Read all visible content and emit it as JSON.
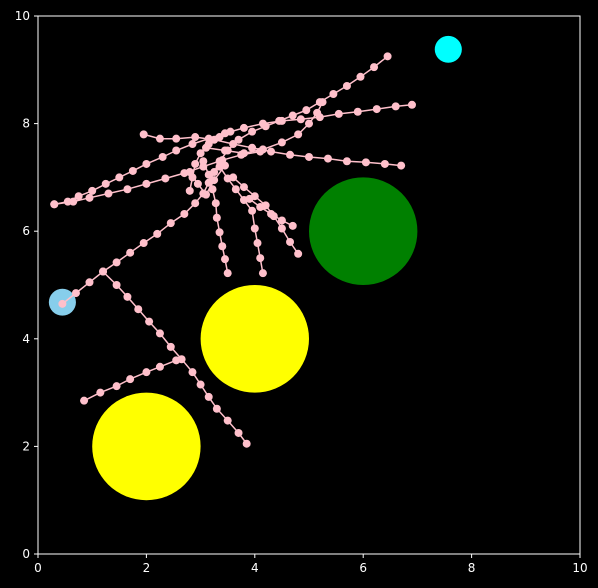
{
  "chart_data": {
    "type": "scatter",
    "title": "",
    "xlabel": "",
    "ylabel": "",
    "xlim": [
      0,
      10
    ],
    "ylim": [
      0,
      10
    ],
    "xticks": [
      "0",
      "2",
      "4",
      "6",
      "8",
      "10"
    ],
    "yticks": [
      "0",
      "2",
      "4",
      "6",
      "8",
      "10"
    ],
    "grid": false,
    "colors": {
      "background": "#000000",
      "axes": "#ffffff",
      "tree": "#ffc0cb",
      "start": "#87ceeb",
      "goal": "#00ffff",
      "obstacle_yellow": "#ffff00",
      "obstacle_green": "#008000"
    },
    "obstacles": [
      {
        "cx": 2,
        "cy": 2,
        "r": 1.0,
        "color": "#ffff00"
      },
      {
        "cx": 4,
        "cy": 4,
        "r": 1.0,
        "color": "#ffff00"
      },
      {
        "cx": 6,
        "cy": 6,
        "r": 1.0,
        "color": "#008000"
      }
    ],
    "start": {
      "x": 0.45,
      "y": 4.68,
      "r": 0.25,
      "color": "#87ceeb"
    },
    "goal": {
      "x": 7.57,
      "y": 9.38,
      "r": 0.25,
      "color": "#00ffff"
    },
    "paths": [
      [
        [
          0.45,
          4.65
        ],
        [
          0.7,
          4.85
        ],
        [
          0.95,
          5.05
        ],
        [
          1.2,
          5.25
        ],
        [
          1.45,
          5.42
        ],
        [
          1.7,
          5.6
        ],
        [
          1.95,
          5.78
        ],
        [
          2.2,
          5.95
        ],
        [
          2.45,
          6.15
        ],
        [
          2.7,
          6.32
        ],
        [
          2.9,
          6.52
        ],
        [
          3.05,
          6.7
        ],
        [
          3.15,
          6.9
        ],
        [
          3.25,
          7.1
        ],
        [
          3.35,
          7.3
        ],
        [
          3.5,
          7.5
        ],
        [
          3.7,
          7.7
        ],
        [
          3.95,
          7.85
        ],
        [
          4.2,
          7.95
        ],
        [
          4.45,
          8.05
        ],
        [
          4.7,
          8.15
        ],
        [
          4.95,
          8.25
        ],
        [
          5.2,
          8.4
        ],
        [
          5.45,
          8.55
        ],
        [
          5.7,
          8.7
        ],
        [
          5.95,
          8.87
        ],
        [
          6.2,
          9.05
        ],
        [
          6.45,
          9.25
        ]
      ],
      [
        [
          1.2,
          5.25
        ],
        [
          1.45,
          5.0
        ],
        [
          1.65,
          4.78
        ],
        [
          1.85,
          4.55
        ],
        [
          2.05,
          4.32
        ],
        [
          2.25,
          4.1
        ],
        [
          2.45,
          3.85
        ],
        [
          2.65,
          3.62
        ],
        [
          2.85,
          3.38
        ],
        [
          3.0,
          3.15
        ],
        [
          3.15,
          2.92
        ],
        [
          3.3,
          2.7
        ],
        [
          3.5,
          2.48
        ],
        [
          3.7,
          2.25
        ],
        [
          3.85,
          2.05
        ]
      ],
      [
        [
          0.85,
          2.85
        ],
        [
          1.15,
          3.0
        ],
        [
          1.45,
          3.12
        ],
        [
          1.7,
          3.25
        ],
        [
          2.0,
          3.38
        ],
        [
          2.25,
          3.48
        ],
        [
          2.55,
          3.6
        ]
      ],
      [
        [
          0.3,
          6.5
        ],
        [
          0.65,
          6.55
        ],
        [
          0.95,
          6.62
        ],
        [
          1.3,
          6.7
        ],
        [
          1.65,
          6.78
        ],
        [
          2.0,
          6.88
        ],
        [
          2.35,
          6.98
        ],
        [
          2.7,
          7.08
        ],
        [
          3.05,
          7.2
        ],
        [
          3.4,
          7.32
        ],
        [
          3.75,
          7.42
        ],
        [
          4.1,
          7.48
        ]
      ],
      [
        [
          0.3,
          6.5
        ],
        [
          0.55,
          6.55
        ],
        [
          0.75,
          6.65
        ],
        [
          1.0,
          6.75
        ],
        [
          1.25,
          6.88
        ],
        [
          1.5,
          7.0
        ],
        [
          1.75,
          7.12
        ],
        [
          2.0,
          7.25
        ],
        [
          2.3,
          7.38
        ],
        [
          2.55,
          7.5
        ],
        [
          2.85,
          7.62
        ],
        [
          3.15,
          7.72
        ],
        [
          3.45,
          7.82
        ],
        [
          3.8,
          7.92
        ],
        [
          4.15,
          8.0
        ],
        [
          4.5,
          8.05
        ],
        [
          4.85,
          8.08
        ],
        [
          5.2,
          8.12
        ],
        [
          5.55,
          8.18
        ],
        [
          5.9,
          8.22
        ],
        [
          6.25,
          8.27
        ],
        [
          6.6,
          8.32
        ],
        [
          6.9,
          8.35
        ]
      ],
      [
        [
          1.95,
          7.8
        ],
        [
          2.25,
          7.72
        ],
        [
          2.55,
          7.72
        ],
        [
          2.9,
          7.75
        ],
        [
          3.25,
          7.7
        ],
        [
          3.6,
          7.62
        ],
        [
          3.95,
          7.55
        ],
        [
          4.3,
          7.48
        ],
        [
          4.65,
          7.42
        ],
        [
          5.0,
          7.38
        ],
        [
          5.35,
          7.35
        ],
        [
          5.7,
          7.3
        ],
        [
          6.05,
          7.28
        ],
        [
          6.4,
          7.25
        ],
        [
          6.7,
          7.22
        ]
      ],
      [
        [
          3.05,
          7.3
        ],
        [
          3.15,
          7.05
        ],
        [
          3.22,
          6.78
        ],
        [
          3.28,
          6.52
        ],
        [
          3.3,
          6.25
        ],
        [
          3.35,
          5.98
        ],
        [
          3.4,
          5.72
        ],
        [
          3.45,
          5.48
        ],
        [
          3.5,
          5.22
        ]
      ],
      [
        [
          3.35,
          7.2
        ],
        [
          3.5,
          6.98
        ],
        [
          3.65,
          6.78
        ],
        [
          3.8,
          6.58
        ],
        [
          3.95,
          6.38
        ],
        [
          4.0,
          6.05
        ],
        [
          4.05,
          5.78
        ],
        [
          4.1,
          5.5
        ],
        [
          4.15,
          5.22
        ]
      ],
      [
        [
          3.6,
          7.0
        ],
        [
          3.8,
          6.82
        ],
        [
          4.0,
          6.65
        ],
        [
          4.2,
          6.48
        ],
        [
          4.35,
          6.28
        ],
        [
          4.5,
          6.05
        ],
        [
          4.65,
          5.8
        ],
        [
          4.8,
          5.58
        ]
      ],
      [
        [
          3.9,
          6.6
        ],
        [
          4.1,
          6.45
        ],
        [
          4.3,
          6.32
        ],
        [
          4.5,
          6.2
        ],
        [
          4.7,
          6.1
        ]
      ],
      [
        [
          2.8,
          6.75
        ],
        [
          2.85,
          7.0
        ],
        [
          2.9,
          7.25
        ],
        [
          3.0,
          7.45
        ],
        [
          3.15,
          7.62
        ],
        [
          3.35,
          7.75
        ],
        [
          3.55,
          7.85
        ]
      ],
      [
        [
          3.1,
          7.55
        ],
        [
          3.45,
          7.5
        ],
        [
          3.8,
          7.45
        ],
        [
          4.15,
          7.52
        ],
        [
          4.5,
          7.65
        ],
        [
          4.8,
          7.8
        ],
        [
          5.0,
          8.0
        ],
        [
          5.15,
          8.2
        ],
        [
          5.25,
          8.4
        ]
      ],
      [
        [
          2.8,
          7.1
        ],
        [
          2.95,
          6.88
        ],
        [
          3.1,
          6.68
        ],
        [
          3.25,
          6.95
        ],
        [
          3.45,
          7.22
        ]
      ]
    ]
  }
}
